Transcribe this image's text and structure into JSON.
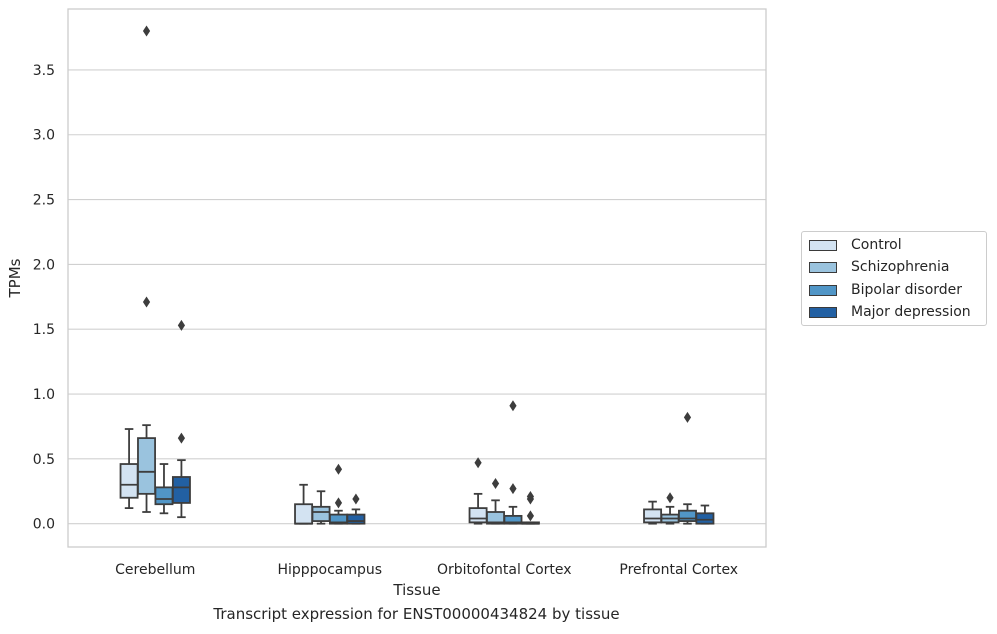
{
  "chart_data": {
    "type": "box",
    "xlabel": "Tissue",
    "ylabel": "TPMs",
    "caption": "Transcript expression for ENST00000434824 by tissue",
    "categories": [
      "Cerebellum",
      "Hipppocampus",
      "Orbitofontal Cortex",
      "Prefrontal Cortex"
    ],
    "ylim": [
      -0.18,
      3.97
    ],
    "yticks": [
      "0.0",
      "0.5",
      "1.0",
      "1.5",
      "2.0",
      "2.5",
      "3.0",
      "3.5"
    ],
    "grid": "horizontal",
    "legend_position": "right",
    "series": [
      {
        "name": "Control",
        "color": "#d3e3f2",
        "boxes": [
          {
            "whislo": 0.12,
            "q1": 0.2,
            "med": 0.3,
            "q3": 0.46,
            "whishi": 0.73,
            "fliers": []
          },
          {
            "whislo": 0.0,
            "q1": 0.0,
            "med": 0.0,
            "q3": 0.15,
            "whishi": 0.3,
            "fliers": []
          },
          {
            "whislo": 0.0,
            "q1": 0.01,
            "med": 0.04,
            "q3": 0.12,
            "whishi": 0.23,
            "fliers": [
              0.47
            ]
          },
          {
            "whislo": 0.0,
            "q1": 0.01,
            "med": 0.04,
            "q3": 0.11,
            "whishi": 0.17,
            "fliers": []
          }
        ]
      },
      {
        "name": "Schizophrenia",
        "color": "#9ac3de",
        "boxes": [
          {
            "whislo": 0.09,
            "q1": 0.23,
            "med": 0.4,
            "q3": 0.66,
            "whishi": 0.76,
            "fliers": [
              1.71,
              3.8
            ]
          },
          {
            "whislo": 0.0,
            "q1": 0.02,
            "med": 0.09,
            "q3": 0.13,
            "whishi": 0.25,
            "fliers": []
          },
          {
            "whislo": 0.0,
            "q1": 0.0,
            "med": 0.01,
            "q3": 0.09,
            "whishi": 0.18,
            "fliers": [
              0.31
            ]
          },
          {
            "whislo": 0.0,
            "q1": 0.01,
            "med": 0.04,
            "q3": 0.07,
            "whishi": 0.13,
            "fliers": [
              0.2
            ]
          }
        ]
      },
      {
        "name": "Bipolar disorder",
        "color": "#5196c7",
        "boxes": [
          {
            "whislo": 0.08,
            "q1": 0.15,
            "med": 0.19,
            "q3": 0.28,
            "whishi": 0.46,
            "fliers": []
          },
          {
            "whislo": 0.0,
            "q1": 0.0,
            "med": 0.01,
            "q3": 0.07,
            "whishi": 0.1,
            "fliers": [
              0.16,
              0.42
            ]
          },
          {
            "whislo": 0.0,
            "q1": 0.0,
            "med": 0.01,
            "q3": 0.06,
            "whishi": 0.13,
            "fliers": [
              0.27,
              0.91
            ]
          },
          {
            "whislo": 0.0,
            "q1": 0.02,
            "med": 0.04,
            "q3": 0.1,
            "whishi": 0.15,
            "fliers": [
              0.82
            ]
          }
        ]
      },
      {
        "name": "Major depression",
        "color": "#2260a3",
        "boxes": [
          {
            "whislo": 0.05,
            "q1": 0.16,
            "med": 0.28,
            "q3": 0.36,
            "whishi": 0.49,
            "fliers": [
              0.66,
              1.53
            ]
          },
          {
            "whislo": 0.0,
            "q1": 0.0,
            "med": 0.02,
            "q3": 0.07,
            "whishi": 0.11,
            "fliers": [
              0.19
            ]
          },
          {
            "whislo": 0.0,
            "q1": 0.0,
            "med": 0.0,
            "q3": 0.01,
            "whishi": 0.01,
            "fliers": [
              0.06,
              0.19,
              0.21
            ]
          },
          {
            "whislo": 0.0,
            "q1": 0.0,
            "med": 0.03,
            "q3": 0.08,
            "whishi": 0.14,
            "fliers": []
          }
        ]
      }
    ]
  }
}
